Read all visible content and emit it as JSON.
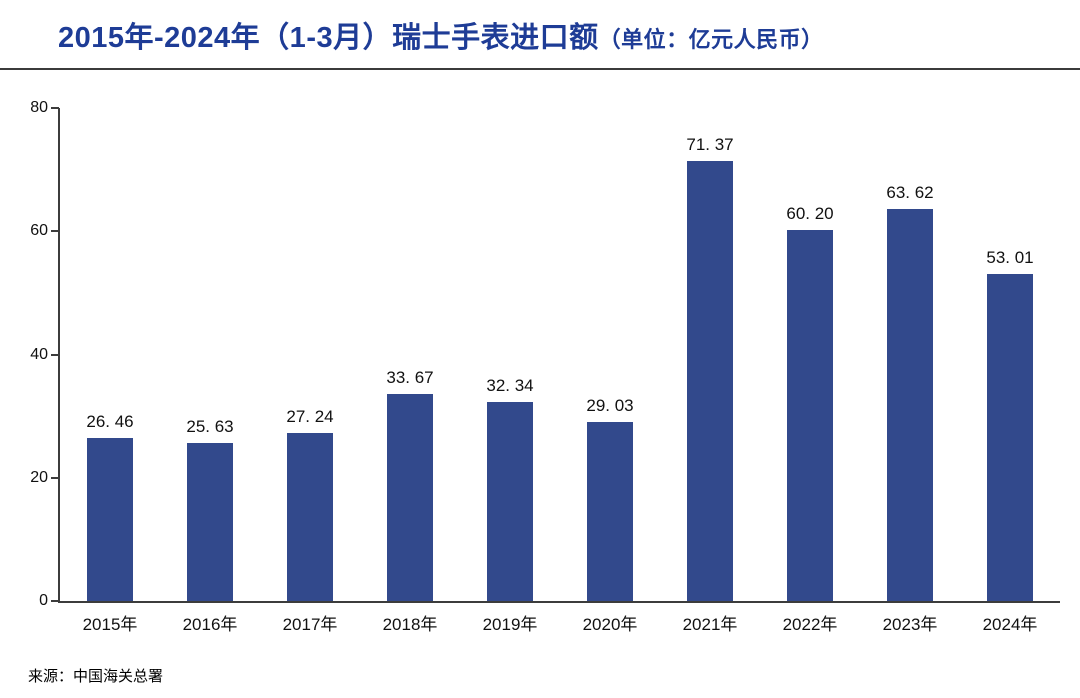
{
  "header": {
    "title_main": "2015年-2024年（1-3月）瑞士手表进口额",
    "title_unit": "（单位：亿元人民币）"
  },
  "chart_data": {
    "type": "bar",
    "title": "2015年-2024年（1-3月）瑞士手表进口额（单位：亿元人民币）",
    "categories": [
      "2015年",
      "2016年",
      "2017年",
      "2018年",
      "2019年",
      "2020年",
      "2021年",
      "2022年",
      "2023年",
      "2024年"
    ],
    "values": [
      26.46,
      25.63,
      27.24,
      33.67,
      32.34,
      29.03,
      71.37,
      60.2,
      63.62,
      53.01
    ],
    "value_labels": [
      "26. 46",
      "25. 63",
      "27. 24",
      "33. 67",
      "32. 34",
      "29. 03",
      "71. 37",
      "60. 20",
      "63. 62",
      "53. 01"
    ],
    "xlabel": "",
    "ylabel": "",
    "ylim": [
      0,
      80
    ],
    "yticks": [
      0,
      20,
      40,
      60,
      80
    ],
    "grid": false,
    "legend": "none",
    "bar_color": "#32498c"
  },
  "footer": {
    "source": "来源：中国海关总署"
  }
}
